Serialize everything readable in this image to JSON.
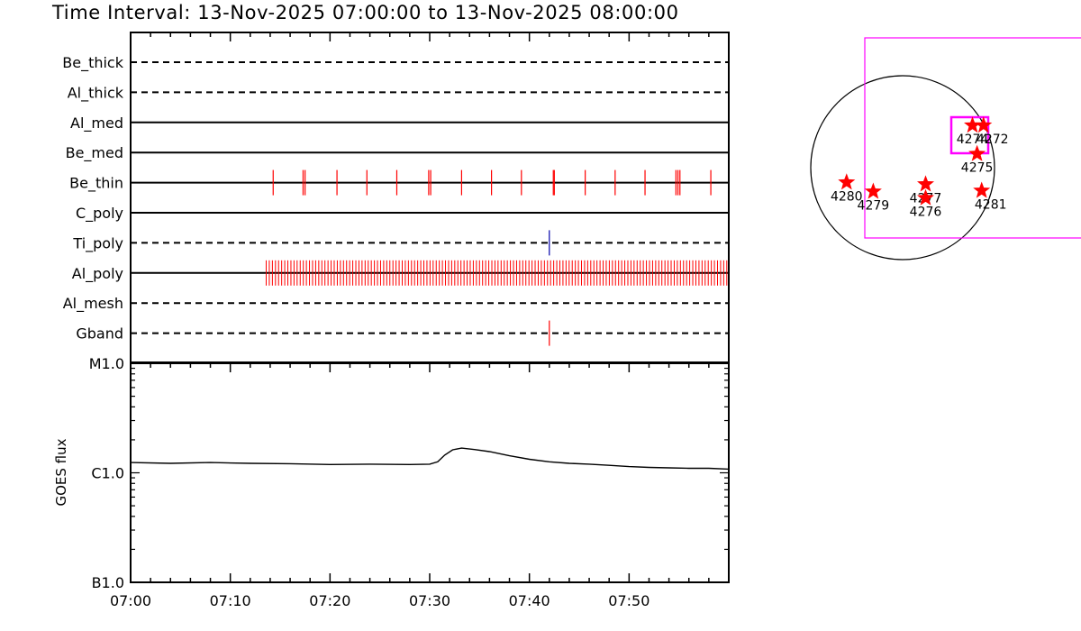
{
  "title": "Time Interval: 13-Nov-2025 07:00:00 to 13-Nov-2025 08:00:00",
  "colors": {
    "event_red": "#ff0000",
    "event_blue": "#0000aa",
    "fov_magenta": "#ff00ff",
    "star_red": "#ff0000",
    "axis": "#000000"
  },
  "chart_data": [
    {
      "type": "timeline",
      "x_ticks": [
        "07:00",
        "07:10",
        "07:20",
        "07:30",
        "07:40",
        "07:50"
      ],
      "x_range_minutes": [
        0,
        60
      ],
      "filters": [
        {
          "name": "Be_thick",
          "style": "dashed",
          "events": []
        },
        {
          "name": "Al_thick",
          "style": "dashed",
          "events": []
        },
        {
          "name": "Al_med",
          "style": "solid",
          "events": []
        },
        {
          "name": "Be_med",
          "style": "solid",
          "events": []
        },
        {
          "name": "Be_thin",
          "style": "solid",
          "color": "#ff0000",
          "events": [
            14.3,
            17.3,
            17.5,
            20.7,
            23.7,
            26.7,
            29.9,
            30.1,
            33.2,
            36.2,
            39.2,
            42.4,
            42.5,
            45.6,
            48.6,
            51.6,
            54.7,
            54.9,
            55.1,
            58.2
          ]
        },
        {
          "name": "C_poly",
          "style": "solid",
          "events": []
        },
        {
          "name": "Ti_poly",
          "style": "dashed",
          "color": "#0000aa",
          "events": [
            42.0
          ]
        },
        {
          "name": "Al_poly",
          "style": "solid",
          "color": "#ff0000",
          "dense_range_minutes": [
            13.6,
            59.8
          ],
          "dense_count": 150,
          "events": []
        },
        {
          "name": "Al_mesh",
          "style": "dashed",
          "events": []
        },
        {
          "name": "Gband",
          "style": "dashed",
          "color": "#ff0000",
          "events": [
            42.0
          ]
        }
      ]
    },
    {
      "type": "line",
      "ylabel": "GOES flux",
      "y_ticks": [
        "M1.0",
        "C1.0",
        "B1.0"
      ],
      "y_scale": "log",
      "y_range": [
        1e-07,
        1e-05
      ],
      "x_ticks": [
        "07:00",
        "07:10",
        "07:20",
        "07:30",
        "07:40",
        "07:50"
      ],
      "x_range_minutes": [
        0,
        60
      ],
      "series": [
        {
          "x": [
            0,
            4,
            8,
            12,
            16,
            20,
            24,
            28,
            30,
            30.8,
            31.5,
            32.3,
            33.2,
            34.5,
            36,
            38,
            40,
            42,
            44,
            46,
            48,
            50,
            52,
            54,
            56,
            58,
            60
          ],
          "y": [
            1.24e-06,
            1.22e-06,
            1.24e-06,
            1.22e-06,
            1.21e-06,
            1.19e-06,
            1.2e-06,
            1.19e-06,
            1.2e-06,
            1.26e-06,
            1.45e-06,
            1.62e-06,
            1.68e-06,
            1.63e-06,
            1.56e-06,
            1.43e-06,
            1.33e-06,
            1.26e-06,
            1.22e-06,
            1.2e-06,
            1.17e-06,
            1.14e-06,
            1.12e-06,
            1.11e-06,
            1.1e-06,
            1.1e-06,
            1.08e-06
          ]
        }
      ]
    },
    {
      "type": "scatter",
      "description_labels": [
        "4274",
        "4272",
        "4275",
        "4280",
        "4279",
        "4277",
        "4276",
        "4281"
      ],
      "regions": [
        {
          "label": "4274",
          "x": 0.76,
          "y": 0.46
        },
        {
          "label": "4272",
          "x": 0.88,
          "y": 0.46
        },
        {
          "label": "4275",
          "x": 0.81,
          "y": 0.15
        },
        {
          "label": "4280",
          "x": -0.61,
          "y": -0.16
        },
        {
          "label": "4279",
          "x": -0.32,
          "y": -0.26
        },
        {
          "label": "4277",
          "x": 0.25,
          "y": -0.18
        },
        {
          "label": "4276",
          "x": 0.25,
          "y": -0.33
        },
        {
          "label": "4281",
          "x": 0.86,
          "y": -0.25
        }
      ]
    }
  ]
}
